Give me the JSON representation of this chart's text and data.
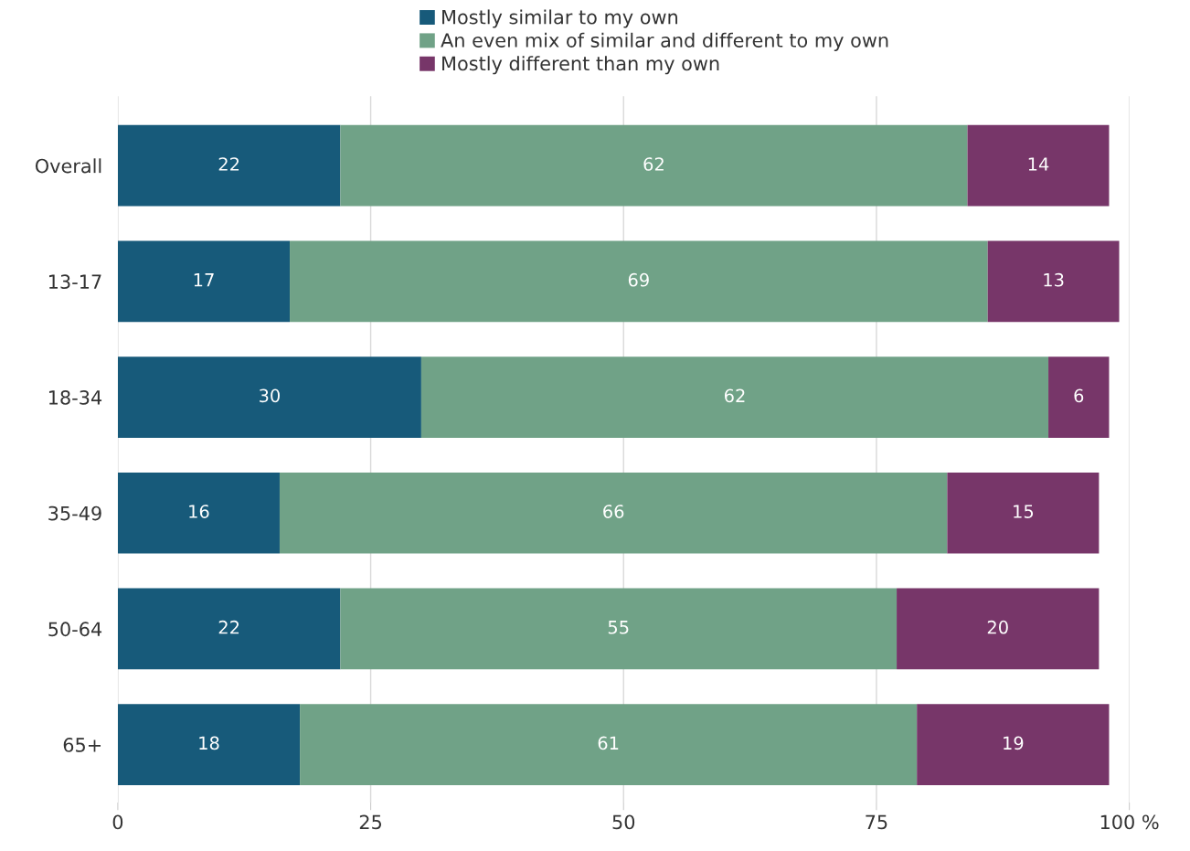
{
  "chart_data": {
    "type": "bar",
    "orientation": "horizontal",
    "stacked": true,
    "categories": [
      "Overall",
      "13-17",
      "18-34",
      "35-49",
      "50-64",
      "65+"
    ],
    "series": [
      {
        "name": "Mostly similar to my own",
        "color": "#175a7a",
        "values": [
          22,
          17,
          30,
          16,
          22,
          18
        ]
      },
      {
        "name": "An even mix of similar and different to my own",
        "color": "#70a287",
        "values": [
          62,
          69,
          62,
          66,
          55,
          61
        ]
      },
      {
        "name": "Mostly different than my own",
        "color": "#773669",
        "values": [
          14,
          13,
          6,
          15,
          20,
          19
        ]
      }
    ],
    "xlim": [
      0,
      100
    ],
    "xticks": [
      0,
      25,
      50,
      75,
      {
        "value": 100,
        "label": "100 %"
      }
    ],
    "grid": "x",
    "legend": "top",
    "data_labels": true
  }
}
